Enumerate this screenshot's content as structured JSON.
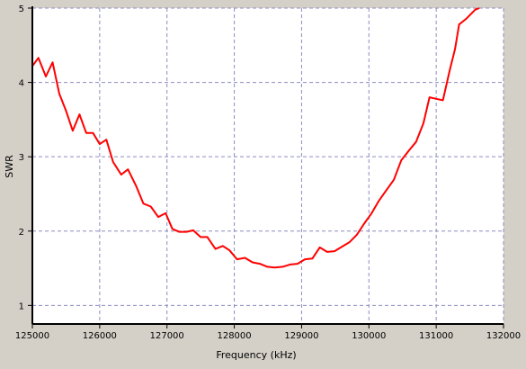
{
  "chart_data": {
    "type": "line",
    "title": "",
    "xlabel": "Frequency (kHz)",
    "ylabel": "SWR",
    "xlim": [
      125000,
      132000
    ],
    "ylim": [
      0.75,
      5
    ],
    "x_ticks": [
      125000,
      126000,
      127000,
      128000,
      129000,
      130000,
      131000,
      132000
    ],
    "y_ticks": [
      1,
      2,
      3,
      4,
      5
    ],
    "x_tick_labels": [
      "125000",
      "126000",
      "127000",
      "128000",
      "129000",
      "130000",
      "131000",
      "132000"
    ],
    "y_tick_labels": [
      "1",
      "2",
      "3",
      "4",
      "5"
    ],
    "grid": true,
    "colors": {
      "plot_bg": "#ffffff",
      "frame_bg": "#d4d0c8",
      "grid": "#8c8cc0",
      "series": "#ff0000",
      "axis": "#000000"
    },
    "series": [
      {
        "color": "#ff0000",
        "x": [
          125000,
          125090,
          125200,
          125300,
          125400,
          125500,
          125600,
          125700,
          125800,
          125900,
          126000,
          126100,
          126200,
          126320,
          126420,
          126540,
          126650,
          126760,
          126870,
          126980,
          127080,
          127180,
          127290,
          127390,
          127500,
          127600,
          127720,
          127830,
          127930,
          128040,
          128160,
          128270,
          128380,
          128490,
          128600,
          128720,
          128830,
          128940,
          129050,
          129160,
          129270,
          129380,
          129490,
          129600,
          129710,
          129820,
          129930,
          130040,
          130150,
          130260,
          130370,
          130480,
          130590,
          130700,
          130810,
          130900,
          131000,
          131100,
          131200,
          131280,
          131340,
          131450,
          131580,
          131640
        ],
        "y": [
          4.22,
          4.33,
          4.08,
          4.27,
          3.85,
          3.62,
          3.35,
          3.57,
          3.32,
          3.32,
          3.17,
          3.23,
          2.93,
          2.76,
          2.83,
          2.61,
          2.37,
          2.33,
          2.19,
          2.24,
          2.03,
          1.99,
          1.99,
          2.01,
          1.92,
          1.92,
          1.76,
          1.8,
          1.74,
          1.62,
          1.64,
          1.58,
          1.56,
          1.52,
          1.51,
          1.52,
          1.55,
          1.56,
          1.62,
          1.63,
          1.78,
          1.72,
          1.73,
          1.79,
          1.85,
          1.95,
          2.1,
          2.24,
          2.41,
          2.55,
          2.69,
          2.95,
          3.08,
          3.2,
          3.45,
          3.8,
          3.78,
          3.76,
          4.16,
          4.45,
          4.78,
          4.86,
          4.98,
          5.0
        ]
      }
    ]
  }
}
